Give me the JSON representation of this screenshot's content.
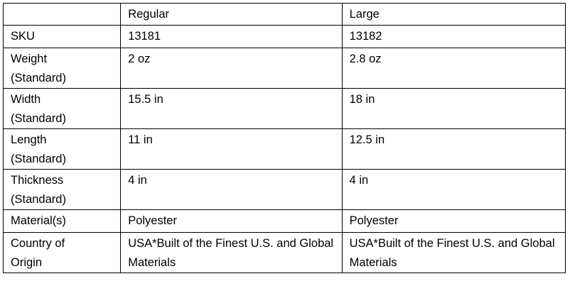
{
  "table": {
    "header": [
      "",
      "Regular",
      "Large"
    ],
    "rows": [
      [
        "SKU",
        "13181",
        "13182"
      ],
      [
        "Weight (Standard)",
        "2 oz",
        "2.8 oz"
      ],
      [
        "Width (Standard)",
        "15.5 in",
        "18 in"
      ],
      [
        "Length (Standard)",
        "11 in",
        "12.5 in"
      ],
      [
        "Thickness (Standard)",
        "4 in",
        "4 in"
      ],
      [
        "Material(s)",
        "Polyester",
        "Polyester"
      ],
      [
        "Country of Origin",
        "USA*Built of the Finest U.S. and Global Materials",
        "USA*Built of the Finest U.S. and Global Materials"
      ]
    ]
  }
}
